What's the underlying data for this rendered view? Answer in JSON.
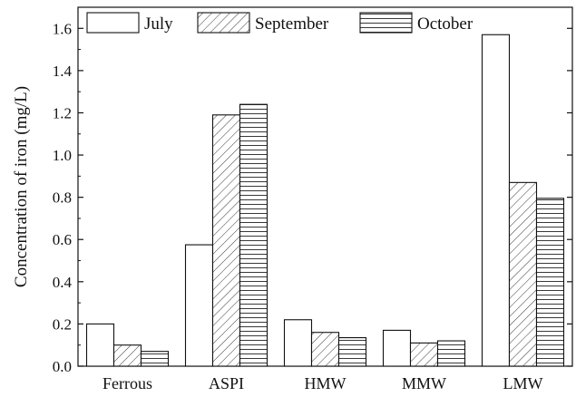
{
  "chart_data": {
    "type": "bar",
    "categories": [
      "Ferrous",
      "ASPI",
      "HMW",
      "MMW",
      "LMW"
    ],
    "series": [
      {
        "name": "July",
        "values": [
          0.2,
          0.575,
          0.22,
          0.17,
          1.57
        ]
      },
      {
        "name": "September",
        "values": [
          0.1,
          1.19,
          0.16,
          0.11,
          0.87
        ]
      },
      {
        "name": "October",
        "values": [
          0.07,
          1.24,
          0.135,
          0.12,
          0.795
        ]
      }
    ],
    "title": "",
    "xlabel": "",
    "ylabel": "Concentration of iron (mg/L)",
    "ylim": [
      0,
      1.7
    ],
    "yticks": [
      "0.0",
      "0.2",
      "0.4",
      "0.6",
      "0.8",
      "1.0",
      "1.2",
      "1.4",
      "1.6"
    ],
    "legend_position": "top",
    "grid": false,
    "series_patterns": [
      "none",
      "diagonal",
      "horizontal"
    ]
  }
}
